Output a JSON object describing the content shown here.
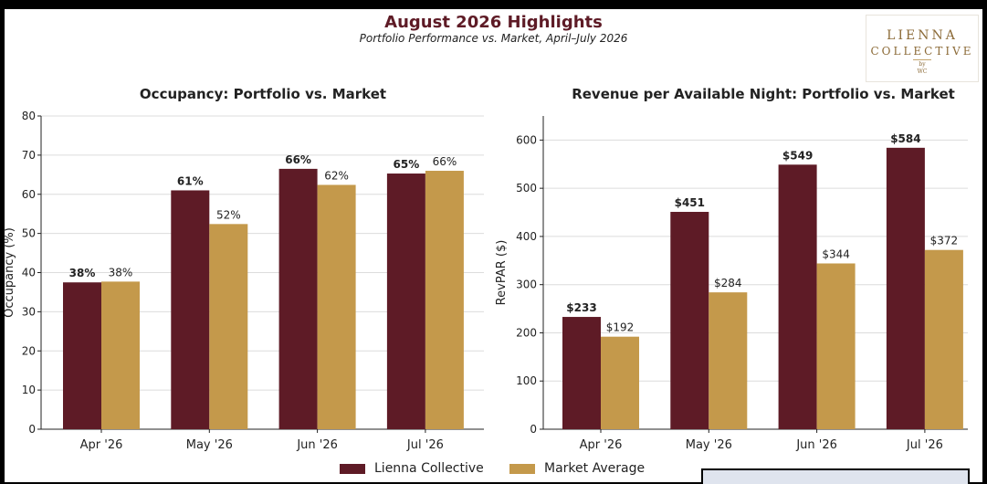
{
  "header": {
    "title": "August 2026 Highlights",
    "subtitle": "Portfolio Performance vs. Market, April–July 2026"
  },
  "logo": {
    "line1": "LIENNA",
    "line2": "COLLECTIVE",
    "line3": "by",
    "line4": "WC"
  },
  "colors": {
    "portfolio": "#5e1b26",
    "market": "#c4994b"
  },
  "legend": {
    "portfolio": "Lienna Collective",
    "market": "Market Average",
    "placement": "bottom-center"
  },
  "chart_data": [
    {
      "type": "bar",
      "title": "Occupancy: Portfolio vs. Market",
      "xlabel": "",
      "ylabel": "Occupancy (%)",
      "categories": [
        "Apr '26",
        "May '26",
        "Jun '26",
        "Jul '26"
      ],
      "ylim": [
        0,
        80
      ],
      "yticks": [
        0,
        10,
        20,
        30,
        40,
        50,
        60,
        70,
        80
      ],
      "grid": true,
      "series": [
        {
          "name": "Lienna Collective",
          "values": [
            37.5,
            61,
            66.5,
            65.3
          ],
          "labels": [
            "38%",
            "61%",
            "66%",
            "65%"
          ]
        },
        {
          "name": "Market Average",
          "values": [
            37.7,
            52.4,
            62.4,
            66
          ],
          "labels": [
            "38%",
            "52%",
            "62%",
            "66%"
          ]
        }
      ]
    },
    {
      "type": "bar",
      "title": "Revenue per Available Night: Portfolio vs. Market",
      "xlabel": "",
      "ylabel": "RevPAR ($)",
      "categories": [
        "Apr '26",
        "May '26",
        "Jun '26",
        "Jul '26"
      ],
      "ylim": [
        0,
        650
      ],
      "yticks": [
        0,
        100,
        200,
        300,
        400,
        500,
        600
      ],
      "grid": true,
      "series": [
        {
          "name": "Lienna Collective",
          "values": [
            233,
            451,
            549,
            584
          ],
          "labels": [
            "$233",
            "$451",
            "$549",
            "$584"
          ]
        },
        {
          "name": "Market Average",
          "values": [
            192,
            284,
            344,
            372
          ],
          "labels": [
            "$192",
            "$284",
            "$344",
            "$372"
          ]
        }
      ]
    }
  ]
}
